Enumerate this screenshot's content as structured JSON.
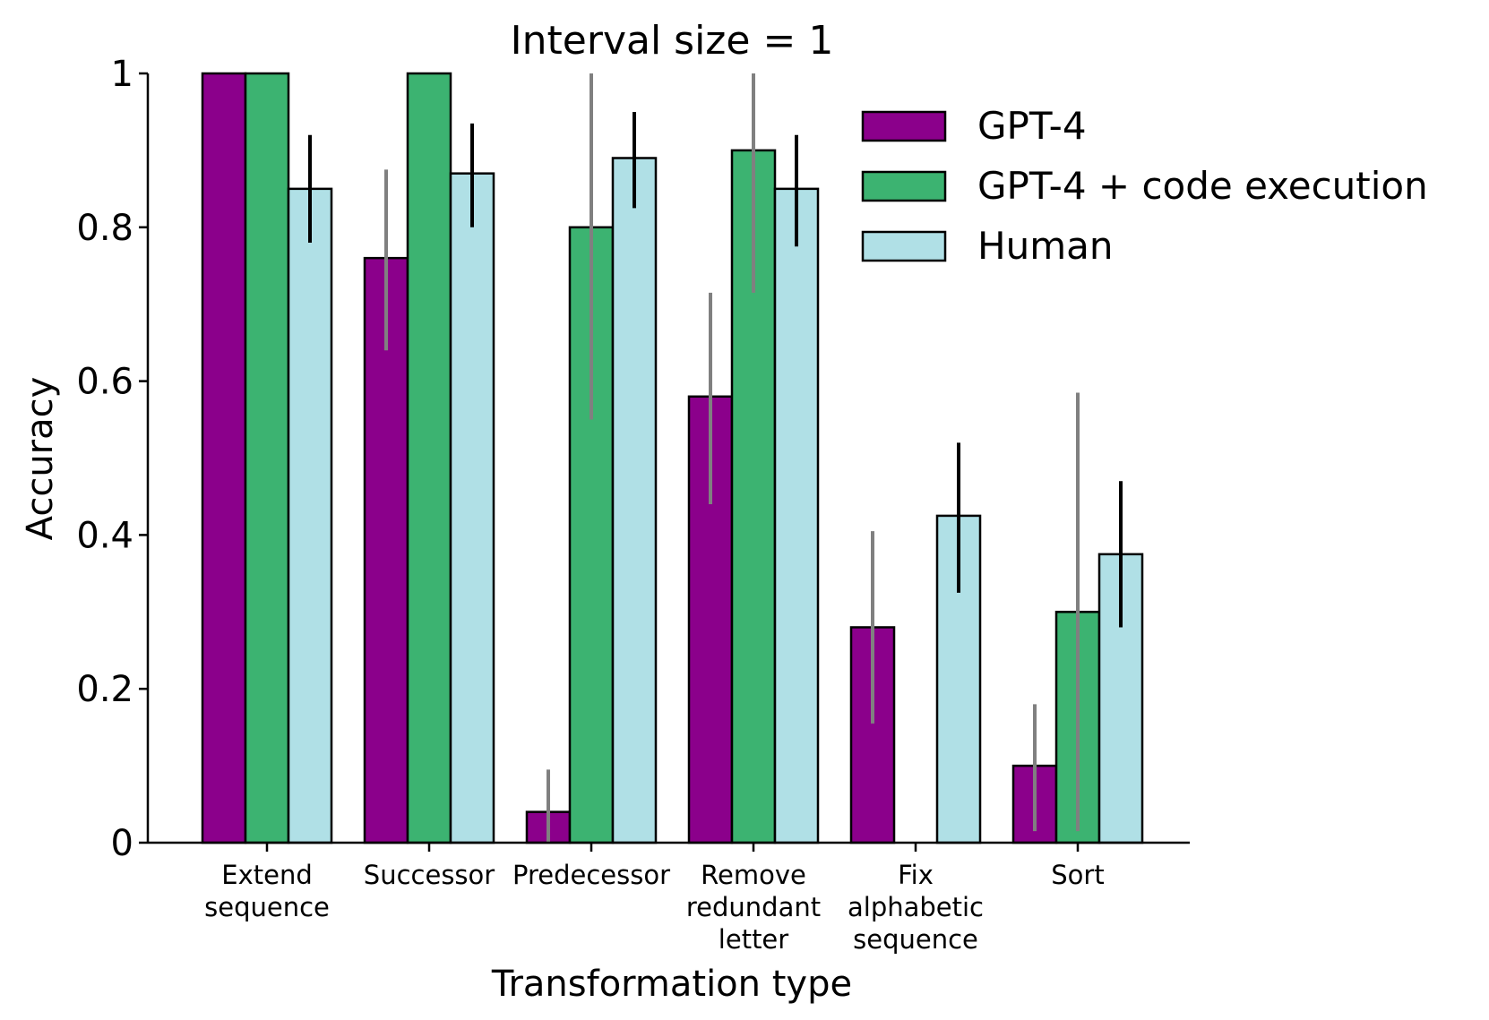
{
  "chart_data": {
    "type": "bar",
    "title": "Interval size = 1",
    "xlabel": "Transformation type",
    "ylabel": "Accuracy",
    "ylim": [
      0,
      1
    ],
    "yticks": [
      {
        "value": 0,
        "label": "0"
      },
      {
        "value": 0.2,
        "label": "0.2"
      },
      {
        "value": 0.4,
        "label": "0.4"
      },
      {
        "value": 0.6,
        "label": "0.6"
      },
      {
        "value": 0.8,
        "label": "0.8"
      },
      {
        "value": 1,
        "label": "1"
      }
    ],
    "categories": [
      [
        "Extend",
        "sequence"
      ],
      [
        "Successor"
      ],
      [
        "Predecessor"
      ],
      [
        "Remove",
        "redundant",
        "letter"
      ],
      [
        "Fix",
        "alphabetic",
        "sequence"
      ],
      [
        "Sort"
      ]
    ],
    "series": [
      {
        "name": "GPT-4",
        "color": "#8b008b",
        "error_color": "#808080",
        "values": [
          1.0,
          0.76,
          0.04,
          0.58,
          0.28,
          0.1
        ],
        "error_low": [
          null,
          0.64,
          0.0,
          0.44,
          0.155,
          0.015
        ],
        "error_high": [
          null,
          0.875,
          0.095,
          0.715,
          0.405,
          0.18
        ]
      },
      {
        "name": "GPT-4 + code execution",
        "color": "#3cb371",
        "error_color": "#808080",
        "values": [
          1.0,
          1.0,
          0.8,
          0.9,
          0.0,
          0.3
        ],
        "error_low": [
          null,
          null,
          0.55,
          0.715,
          null,
          0.015
        ],
        "error_high": [
          null,
          null,
          1.0,
          1.0,
          null,
          0.585
        ]
      },
      {
        "name": "Human",
        "color": "#b0e0e6",
        "error_color": "#000000",
        "values": [
          0.85,
          0.87,
          0.89,
          0.85,
          0.425,
          0.375
        ],
        "error_low": [
          0.78,
          0.8,
          0.825,
          0.775,
          0.325,
          0.28
        ],
        "error_high": [
          0.92,
          0.935,
          0.95,
          0.92,
          0.52,
          0.47
        ]
      }
    ],
    "legend_position": "top-right",
    "grid": false
  }
}
